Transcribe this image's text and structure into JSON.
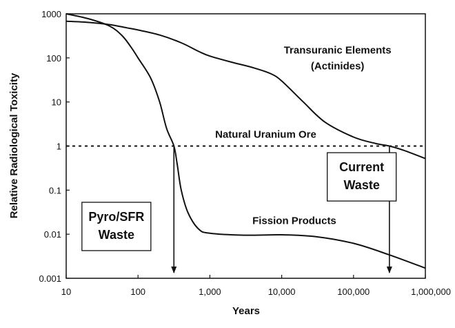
{
  "chart_data": {
    "type": "line",
    "title": "",
    "xlabel": "Years",
    "ylabel": "Relative Radiological Toxicity",
    "xscale": "log",
    "yscale": "log",
    "xlim": [
      10,
      1000000
    ],
    "ylim": [
      0.001,
      1000
    ],
    "x_ticks": [
      {
        "value": 10,
        "label": "10"
      },
      {
        "value": 100,
        "label": "100"
      },
      {
        "value": 1000,
        "label": "1,000"
      },
      {
        "value": 10000,
        "label": "10,000"
      },
      {
        "value": 100000,
        "label": "100,000"
      },
      {
        "value": 1000000,
        "label": "1,000,000"
      }
    ],
    "y_ticks": [
      {
        "value": 0.001,
        "label": "0.001"
      },
      {
        "value": 0.01,
        "label": "0.01"
      },
      {
        "value": 0.1,
        "label": "0.1"
      },
      {
        "value": 1,
        "label": "1"
      },
      {
        "value": 10,
        "label": "10"
      },
      {
        "value": 100,
        "label": "100"
      },
      {
        "value": 1000,
        "label": "1000"
      }
    ],
    "grid": false,
    "legend": "none",
    "series": [
      {
        "name": "Transuranic Elements (Actinides)",
        "color": "#111111",
        "points": [
          [
            10,
            680
          ],
          [
            20,
            640
          ],
          [
            40,
            570
          ],
          [
            70,
            480
          ],
          [
            100,
            430
          ],
          [
            200,
            330
          ],
          [
            400,
            220
          ],
          [
            700,
            140
          ],
          [
            1000,
            110
          ],
          [
            2000,
            80
          ],
          [
            4000,
            60
          ],
          [
            7000,
            44
          ],
          [
            10000,
            30
          ],
          [
            20000,
            10
          ],
          [
            40000,
            3.5
          ],
          [
            100000,
            1.6
          ],
          [
            200000,
            1.15
          ],
          [
            316000,
            1.0
          ],
          [
            500000,
            0.8
          ],
          [
            1000000,
            0.52
          ]
        ]
      },
      {
        "name": "Fission Products",
        "color": "#111111",
        "points": [
          [
            10,
            1000
          ],
          [
            20,
            780
          ],
          [
            40,
            530
          ],
          [
            60,
            320
          ],
          [
            80,
            175
          ],
          [
            100,
            100
          ],
          [
            150,
            35
          ],
          [
            200,
            10
          ],
          [
            250,
            2.5
          ],
          [
            316,
            1.0
          ],
          [
            350,
            0.4
          ],
          [
            400,
            0.1
          ],
          [
            500,
            0.03
          ],
          [
            700,
            0.013
          ],
          [
            1000,
            0.0105
          ],
          [
            3000,
            0.0095
          ],
          [
            10000,
            0.0097
          ],
          [
            30000,
            0.0088
          ],
          [
            100000,
            0.0062
          ],
          [
            300000,
            0.0035
          ],
          [
            1000000,
            0.0017
          ]
        ]
      }
    ],
    "reference_line": {
      "label": "Natural Uranium Ore",
      "y": 1,
      "style": "dashed"
    },
    "annotations": [
      {
        "kind": "text",
        "text": "Transuranic Elements",
        "anchor": [
          60000,
          125
        ]
      },
      {
        "kind": "text",
        "text": "(Actinides)",
        "anchor": [
          60000,
          55
        ]
      },
      {
        "kind": "text",
        "text": "Fission Products",
        "anchor": [
          15000,
          0.017
        ]
      },
      {
        "kind": "box",
        "lines": [
          "Pyro/SFR",
          "Waste"
        ],
        "anchor": [
          50,
          0.015
        ]
      },
      {
        "kind": "box",
        "lines": [
          "Current",
          "Waste"
        ],
        "anchor": [
          130000,
          0.2
        ]
      }
    ],
    "arrows": [
      {
        "x": 316,
        "from_y": 1,
        "to_y": 0.001
      },
      {
        "x": 316000,
        "from_y": 1,
        "to_y": 0.001
      }
    ]
  }
}
